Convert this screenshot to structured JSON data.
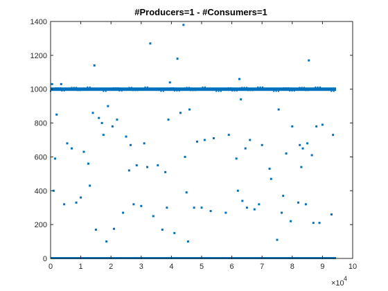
{
  "chart_data": {
    "type": "scatter",
    "title": "#Producers=1 - #Consumers=1",
    "xlabel": "",
    "ylabel": "",
    "x_exponent_label": "×10",
    "x_exponent_power": "4",
    "xlim": [
      0,
      10
    ],
    "ylim": [
      0,
      1400
    ],
    "x_scale_note": "x values in units of 10^4",
    "xticks": [
      0,
      1,
      2,
      3,
      4,
      5,
      6,
      7,
      8,
      9,
      10
    ],
    "xtick_labels": [
      "0",
      "1",
      "2",
      "3",
      "4",
      "5",
      "6",
      "7",
      "8",
      "9",
      "10"
    ],
    "yticks": [
      0,
      200,
      400,
      600,
      800,
      1000,
      1200,
      1400
    ],
    "ytick_labels": [
      "0",
      "200",
      "400",
      "600",
      "800",
      "1000",
      "1200",
      "1400"
    ],
    "grid": false,
    "legend": "none",
    "marker_color": "#0072BD",
    "dense_bands": [
      {
        "y": 0,
        "x_range": [
          0,
          9.45
        ],
        "description": "continuous band of points at 0"
      },
      {
        "y": 1000,
        "x_range": [
          0,
          9.45
        ],
        "description": "continuous band of points near 1000"
      }
    ],
    "series": [
      {
        "points": [
          [
            0.05,
            1030
          ],
          [
            0.1,
            400
          ],
          [
            0.15,
            590
          ],
          [
            0.2,
            850
          ],
          [
            0.35,
            1030
          ],
          [
            0.45,
            320
          ],
          [
            0.55,
            680
          ],
          [
            0.7,
            650
          ],
          [
            0.85,
            330
          ],
          [
            1.0,
            360
          ],
          [
            1.1,
            630
          ],
          [
            1.25,
            560
          ],
          [
            1.3,
            430
          ],
          [
            1.4,
            860
          ],
          [
            1.45,
            1140
          ],
          [
            1.5,
            170
          ],
          [
            1.6,
            830
          ],
          [
            1.7,
            800
          ],
          [
            1.75,
            730
          ],
          [
            1.85,
            100
          ],
          [
            1.9,
            900
          ],
          [
            2.05,
            780
          ],
          [
            2.1,
            175
          ],
          [
            2.2,
            820
          ],
          [
            2.4,
            270
          ],
          [
            2.5,
            720
          ],
          [
            2.6,
            520
          ],
          [
            2.65,
            670
          ],
          [
            2.75,
            320
          ],
          [
            2.85,
            550
          ],
          [
            3.0,
            310
          ],
          [
            3.1,
            680
          ],
          [
            3.2,
            540
          ],
          [
            3.3,
            1270
          ],
          [
            3.4,
            250
          ],
          [
            3.55,
            550
          ],
          [
            3.7,
            170
          ],
          [
            3.8,
            510
          ],
          [
            3.85,
            300
          ],
          [
            3.9,
            820
          ],
          [
            3.95,
            1040
          ],
          [
            4.1,
            150
          ],
          [
            4.2,
            1180
          ],
          [
            4.3,
            860
          ],
          [
            4.4,
            1380
          ],
          [
            4.45,
            600
          ],
          [
            4.5,
            390
          ],
          [
            4.55,
            100
          ],
          [
            4.6,
            880
          ],
          [
            4.75,
            300
          ],
          [
            4.85,
            690
          ],
          [
            5.0,
            300
          ],
          [
            5.1,
            700
          ],
          [
            5.3,
            280
          ],
          [
            5.4,
            710
          ],
          [
            5.6,
            1000
          ],
          [
            5.8,
            270
          ],
          [
            5.9,
            730
          ],
          [
            6.0,
            1000
          ],
          [
            6.15,
            590
          ],
          [
            6.2,
            400
          ],
          [
            6.25,
            1060
          ],
          [
            6.3,
            940
          ],
          [
            6.35,
            340
          ],
          [
            6.45,
            650
          ],
          [
            6.5,
            300
          ],
          [
            6.6,
            700
          ],
          [
            6.75,
            290
          ],
          [
            6.9,
            320
          ],
          [
            7.0,
            670
          ],
          [
            7.25,
            530
          ],
          [
            7.3,
            470
          ],
          [
            7.5,
            110
          ],
          [
            7.55,
            880
          ],
          [
            7.65,
            270
          ],
          [
            7.7,
            370
          ],
          [
            7.8,
            620
          ],
          [
            7.95,
            220
          ],
          [
            8.0,
            780
          ],
          [
            8.1,
            1000
          ],
          [
            8.2,
            330
          ],
          [
            8.25,
            670
          ],
          [
            8.3,
            540
          ],
          [
            8.35,
            650
          ],
          [
            8.45,
            320
          ],
          [
            8.5,
            680
          ],
          [
            8.55,
            1170
          ],
          [
            8.65,
            610
          ],
          [
            8.7,
            210
          ],
          [
            8.8,
            780
          ],
          [
            8.9,
            210
          ],
          [
            9.0,
            790
          ],
          [
            9.3,
            260
          ],
          [
            9.35,
            730
          ]
        ]
      }
    ]
  }
}
